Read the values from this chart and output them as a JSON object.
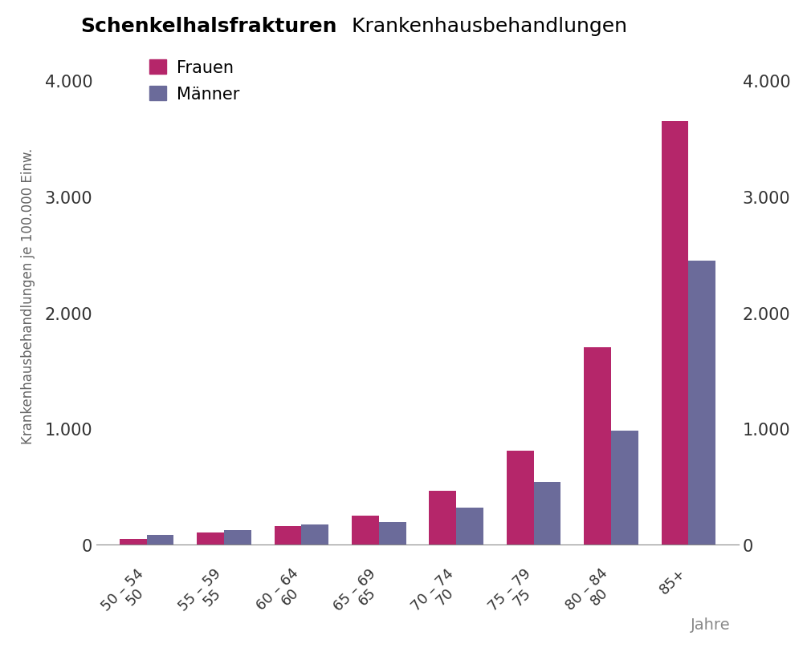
{
  "title_bold": "Schenkelhalsfrakturen",
  "title_normal": " Krankenhausbehandlungen",
  "ylabel_left": "Krankenhausbehandlungen je 100.000 Einw.",
  "xlabel": "Jahre",
  "categories_line1": [
    "50 – 54",
    "55 – 59",
    "60 – 64",
    "65 – 69",
    "70 – 74",
    "75 – 79",
    "80 – 84",
    "85+"
  ],
  "categories_line2": [
    "50",
    "55",
    "60",
    "65",
    "70",
    "75",
    "80",
    ""
  ],
  "frauen_values": [
    50,
    100,
    160,
    250,
    460,
    810,
    1700,
    3650
  ],
  "maenner_values": [
    80,
    120,
    170,
    195,
    320,
    540,
    980,
    2450
  ],
  "frauen_color": "#b5266a",
  "maenner_color": "#6b6b9a",
  "ylim": [
    0,
    4300
  ],
  "yticks": [
    0,
    1000,
    2000,
    3000,
    4000
  ],
  "ytick_labels": [
    "0",
    "1.000",
    "2.000",
    "3.000",
    "4.000"
  ],
  "bar_width": 0.35,
  "legend_frauen": "Frauen",
  "legend_maenner": "Männer",
  "tick_label_color": "#333333",
  "ylabel_color": "#666666",
  "xlabel_color": "#888888",
  "axis_color": "#888888"
}
